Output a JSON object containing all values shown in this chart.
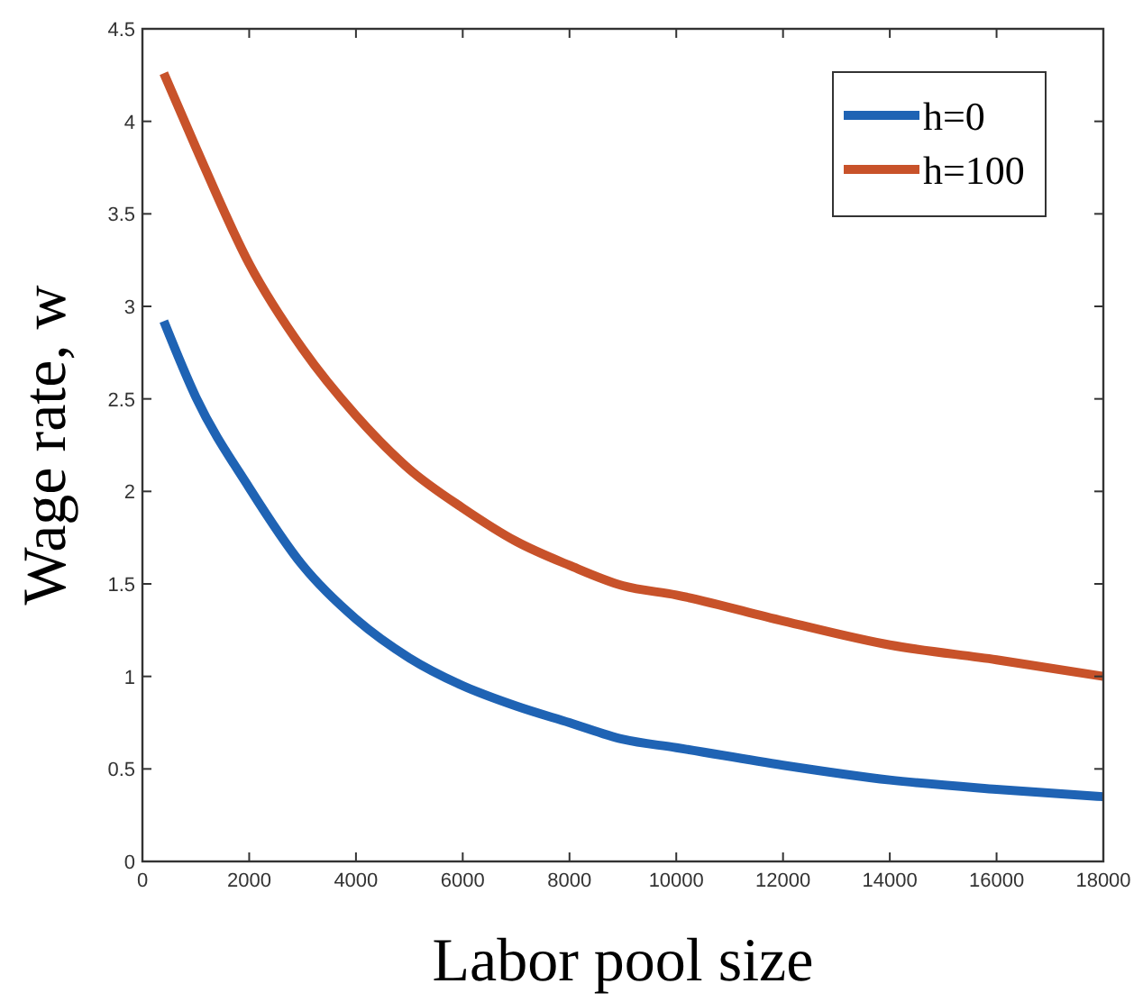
{
  "chart_data": {
    "type": "line",
    "xlabel": "Labor pool size",
    "ylabel": "Wage rate, w",
    "xlim": [
      0,
      18000
    ],
    "ylim": [
      0,
      4.5
    ],
    "xticks": [
      0,
      2000,
      4000,
      6000,
      8000,
      10000,
      12000,
      14000,
      16000,
      18000
    ],
    "yticks": [
      0,
      0.5,
      1,
      1.5,
      2,
      2.5,
      3,
      3.5,
      4,
      4.5
    ],
    "x": [
      400,
      1000,
      2000,
      3000,
      4000,
      5000,
      6000,
      7000,
      8000,
      9000,
      10000,
      12000,
      14000,
      16000,
      18000
    ],
    "series": [
      {
        "name": "h=0",
        "color": "#1f63b4",
        "values": [
          2.92,
          2.51,
          2.02,
          1.6,
          1.31,
          1.1,
          0.95,
          0.84,
          0.75,
          0.66,
          0.615,
          0.52,
          0.44,
          0.39,
          0.35
        ]
      },
      {
        "name": "h=100",
        "color": "#c8522a",
        "values": [
          4.26,
          3.86,
          3.23,
          2.77,
          2.41,
          2.12,
          1.91,
          1.73,
          1.6,
          1.49,
          1.44,
          1.3,
          1.17,
          1.09,
          1.0
        ]
      }
    ],
    "grid": false,
    "legend": "top right",
    "line_style": "solid",
    "marker": "none"
  }
}
